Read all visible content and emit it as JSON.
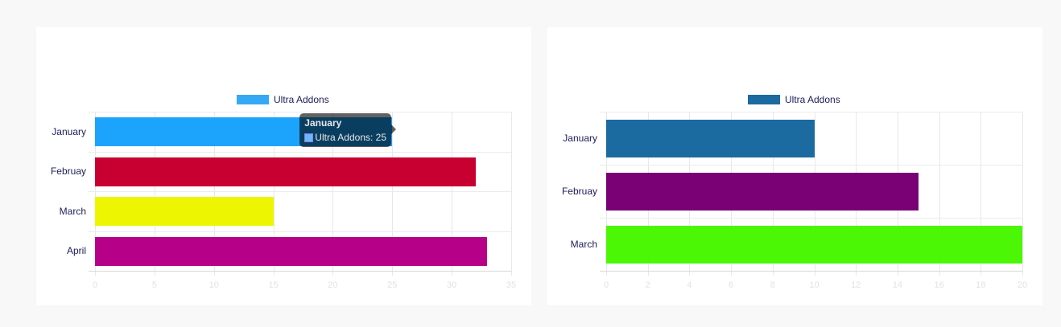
{
  "chart_data": [
    {
      "type": "bar",
      "orientation": "horizontal",
      "title": "",
      "xlabel": "",
      "ylabel": "",
      "xlim": [
        0,
        35
      ],
      "x_ticks": [
        0,
        5,
        10,
        15,
        20,
        25,
        30,
        35
      ],
      "grid": true,
      "legend_position": "top",
      "categories": [
        "January",
        "Februay",
        "March",
        "April"
      ],
      "series": [
        {
          "name": "Ultra Addons",
          "legend_color": "#36a9f5",
          "values": [
            25,
            32,
            15,
            33
          ],
          "colors": [
            "#1ca4fd",
            "#c70031",
            "#eef500",
            "#b60087"
          ]
        }
      ],
      "tooltip": {
        "visible": true,
        "title": "January",
        "label": "Ultra Addons: 25",
        "swatch_color": "#6ab8f7"
      }
    },
    {
      "type": "bar",
      "orientation": "horizontal",
      "title": "",
      "xlabel": "",
      "ylabel": "",
      "xlim": [
        0,
        20
      ],
      "x_ticks": [
        0,
        2,
        4,
        6,
        8,
        10,
        12,
        14,
        16,
        18,
        20
      ],
      "grid": true,
      "legend_position": "top",
      "categories": [
        "January",
        "Februay",
        "March"
      ],
      "series": [
        {
          "name": "Ultra Addons",
          "legend_color": "#1b6aa0",
          "values": [
            10,
            15,
            20
          ],
          "colors": [
            "#1b6aa0",
            "#790075",
            "#4cf705"
          ]
        }
      ]
    }
  ]
}
